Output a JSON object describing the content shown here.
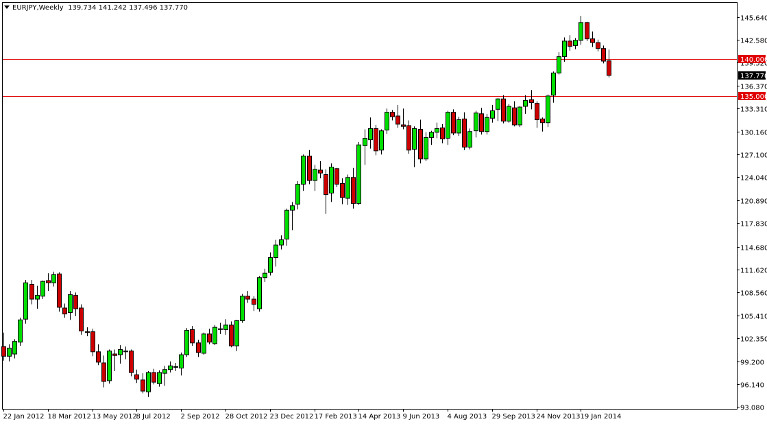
{
  "chart_data": {
    "type": "candlestick",
    "symbol": "EURJPY,Weekly",
    "ohlc_readout": "139.734 141.242 137.496 137.770",
    "current_price": 137.77,
    "current_price_label": "137.770",
    "ylim": [
      93.08,
      147.2
    ],
    "y_ticks": [
      "145.640",
      "142.580",
      "139.520",
      "136.370",
      "133.310",
      "130.160",
      "127.100",
      "124.040",
      "120.890",
      "117.830",
      "114.680",
      "111.620",
      "108.560",
      "105.410",
      "102.350",
      "99.200",
      "96.140",
      "93.080"
    ],
    "x_ticks": [
      {
        "index": 0,
        "label": "22 Jan 2012"
      },
      {
        "index": 8,
        "label": "18 Mar 2012"
      },
      {
        "index": 16,
        "label": "13 May 2012"
      },
      {
        "index": 24,
        "label": "8 Jul 2012"
      },
      {
        "index": 32,
        "label": "2 Sep 2012"
      },
      {
        "index": 40,
        "label": "28 Oct 2012"
      },
      {
        "index": 48,
        "label": "23 Dec 2012"
      },
      {
        "index": 56,
        "label": "17 Feb 2013"
      },
      {
        "index": 64,
        "label": "14 Apr 2013"
      },
      {
        "index": 72,
        "label": "9 Jun 2013"
      },
      {
        "index": 80,
        "label": "4 Aug 2013"
      },
      {
        "index": 88,
        "label": "29 Sep 2013"
      },
      {
        "index": 96,
        "label": "24 Nov 2013"
      },
      {
        "index": 104,
        "label": "19 Jan 2014"
      }
    ],
    "hlines": [
      {
        "value": 140.0,
        "label": "140.000",
        "color": "#e00000"
      },
      {
        "value": 135.0,
        "label": "135.000",
        "color": "#e00000"
      }
    ],
    "colors": {
      "bull": "#00dd00",
      "bear": "#cc0000",
      "wick": "#000000"
    },
    "candles": [
      [
        101.2,
        103.1,
        99.3,
        99.9
      ],
      [
        99.9,
        101.5,
        99.2,
        101.0
      ],
      [
        100.2,
        102.2,
        99.6,
        101.9
      ],
      [
        101.8,
        105.1,
        101.3,
        104.8
      ],
      [
        104.9,
        110.2,
        104.3,
        109.8
      ],
      [
        109.6,
        110.2,
        106.9,
        107.6
      ],
      [
        107.6,
        109.4,
        106.3,
        108.1
      ],
      [
        108.0,
        110.1,
        107.6,
        110.0
      ],
      [
        110.1,
        111.1,
        108.7,
        109.8
      ],
      [
        109.8,
        111.3,
        109.3,
        110.9
      ],
      [
        111.0,
        111.2,
        105.9,
        106.5
      ],
      [
        106.4,
        107.0,
        105.1,
        105.6
      ],
      [
        105.8,
        108.7,
        104.8,
        108.2
      ],
      [
        108.1,
        108.5,
        105.3,
        106.3
      ],
      [
        106.4,
        106.9,
        102.8,
        103.3
      ],
      [
        103.2,
        103.8,
        102.6,
        103.1
      ],
      [
        103.2,
        103.6,
        99.9,
        100.5
      ],
      [
        100.5,
        101.5,
        98.7,
        99.1
      ],
      [
        99.0,
        100.0,
        95.7,
        96.5
      ],
      [
        96.6,
        100.8,
        96.2,
        100.6
      ],
      [
        100.2,
        100.8,
        97.9,
        100.0
      ],
      [
        100.1,
        101.4,
        98.9,
        100.8
      ],
      [
        100.5,
        101.2,
        99.5,
        100.6
      ],
      [
        100.6,
        100.8,
        97.2,
        97.7
      ],
      [
        97.4,
        98.1,
        96.3,
        96.8
      ],
      [
        96.7,
        97.6,
        94.9,
        95.2
      ],
      [
        95.1,
        97.9,
        94.4,
        97.7
      ],
      [
        97.7,
        98.2,
        96.1,
        96.4
      ],
      [
        96.2,
        98.0,
        95.8,
        97.7
      ],
      [
        97.6,
        98.6,
        95.9,
        98.1
      ],
      [
        98.1,
        99.2,
        97.7,
        98.6
      ],
      [
        98.4,
        99.0,
        97.9,
        98.5
      ],
      [
        98.3,
        100.4,
        97.3,
        100.1
      ],
      [
        100.1,
        103.7,
        99.8,
        103.4
      ],
      [
        103.5,
        104.0,
        101.3,
        101.7
      ],
      [
        101.7,
        102.1,
        99.8,
        100.4
      ],
      [
        100.3,
        103.1,
        100.1,
        102.9
      ],
      [
        102.9,
        103.6,
        101.5,
        101.8
      ],
      [
        101.6,
        104.1,
        101.4,
        103.8
      ],
      [
        103.6,
        104.4,
        102.9,
        103.6
      ],
      [
        103.5,
        104.9,
        102.8,
        104.1
      ],
      [
        104.1,
        104.6,
        101.1,
        101.3
      ],
      [
        101.3,
        104.8,
        100.6,
        104.7
      ],
      [
        104.7,
        108.3,
        104.4,
        108.0
      ],
      [
        108.0,
        108.7,
        107.1,
        107.6
      ],
      [
        107.6,
        108.0,
        106.0,
        106.9
      ],
      [
        106.3,
        110.7,
        105.9,
        110.5
      ],
      [
        110.5,
        111.7,
        109.9,
        111.1
      ],
      [
        111.2,
        113.9,
        110.8,
        113.2
      ],
      [
        113.2,
        115.6,
        112.0,
        114.9
      ],
      [
        114.9,
        116.2,
        114.3,
        115.6
      ],
      [
        115.7,
        119.8,
        114.8,
        119.6
      ],
      [
        119.6,
        120.7,
        116.9,
        120.2
      ],
      [
        120.4,
        123.5,
        119.7,
        123.1
      ],
      [
        123.1,
        127.1,
        122.2,
        126.9
      ],
      [
        126.9,
        127.7,
        123.1,
        123.6
      ],
      [
        123.6,
        125.7,
        122.2,
        125.1
      ],
      [
        125.0,
        126.2,
        123.9,
        124.6
      ],
      [
        124.4,
        125.1,
        119.1,
        121.7
      ],
      [
        121.9,
        125.9,
        120.7,
        125.4
      ],
      [
        125.2,
        125.3,
        122.7,
        123.1
      ],
      [
        123.2,
        123.9,
        120.4,
        121.3
      ],
      [
        121.2,
        124.4,
        120.3,
        124.0
      ],
      [
        124.0,
        125.3,
        119.8,
        120.5
      ],
      [
        120.5,
        128.8,
        120.3,
        128.4
      ],
      [
        128.3,
        130.5,
        125.7,
        129.3
      ],
      [
        129.1,
        132.1,
        127.9,
        130.6
      ],
      [
        130.6,
        131.1,
        127.0,
        127.6
      ],
      [
        127.7,
        130.5,
        127.1,
        130.3
      ],
      [
        130.4,
        133.3,
        129.9,
        132.8
      ],
      [
        132.8,
        133.1,
        131.7,
        132.2
      ],
      [
        132.3,
        133.8,
        130.7,
        131.2
      ],
      [
        131.1,
        133.3,
        130.5,
        130.9
      ],
      [
        131.0,
        131.7,
        127.2,
        127.7
      ],
      [
        127.8,
        130.9,
        125.4,
        130.6
      ],
      [
        130.5,
        131.8,
        125.9,
        126.5
      ],
      [
        126.5,
        130.1,
        126.2,
        129.4
      ],
      [
        129.4,
        130.3,
        128.4,
        130.1
      ],
      [
        130.1,
        131.4,
        129.3,
        130.6
      ],
      [
        130.7,
        131.2,
        128.6,
        129.2
      ],
      [
        129.3,
        133.0,
        128.4,
        132.8
      ],
      [
        132.8,
        133.2,
        129.7,
        130.0
      ],
      [
        130.0,
        132.2,
        129.6,
        131.8
      ],
      [
        131.9,
        132.8,
        127.7,
        128.1
      ],
      [
        128.1,
        130.6,
        127.8,
        130.2
      ],
      [
        130.3,
        133.0,
        129.4,
        132.7
      ],
      [
        132.6,
        133.4,
        129.8,
        130.2
      ],
      [
        130.2,
        132.6,
        129.8,
        132.1
      ],
      [
        132.0,
        133.8,
        131.4,
        133.0
      ],
      [
        133.2,
        134.7,
        131.6,
        134.6
      ],
      [
        134.6,
        135.1,
        131.3,
        131.6
      ],
      [
        131.6,
        133.9,
        131.4,
        133.6
      ],
      [
        133.4,
        134.3,
        130.9,
        131.1
      ],
      [
        131.1,
        133.6,
        130.8,
        133.5
      ],
      [
        133.6,
        135.1,
        132.6,
        134.4
      ],
      [
        134.5,
        135.8,
        133.2,
        134.1
      ],
      [
        134.0,
        134.3,
        130.7,
        131.8
      ],
      [
        131.9,
        132.1,
        130.2,
        131.4
      ],
      [
        131.4,
        135.2,
        130.8,
        135.0
      ],
      [
        135.1,
        138.3,
        134.1,
        138.1
      ],
      [
        138.1,
        140.9,
        137.9,
        140.3
      ],
      [
        140.3,
        142.9,
        139.6,
        142.4
      ],
      [
        142.4,
        143.2,
        141.1,
        141.7
      ],
      [
        141.8,
        142.8,
        141.3,
        142.5
      ],
      [
        142.5,
        145.8,
        141.9,
        144.9
      ],
      [
        144.9,
        145.0,
        142.4,
        142.7
      ],
      [
        142.7,
        143.7,
        141.6,
        142.2
      ],
      [
        142.2,
        142.6,
        141.0,
        141.4
      ],
      [
        141.4,
        141.8,
        139.4,
        139.7
      ],
      [
        139.734,
        141.242,
        137.496,
        137.77
      ]
    ]
  }
}
